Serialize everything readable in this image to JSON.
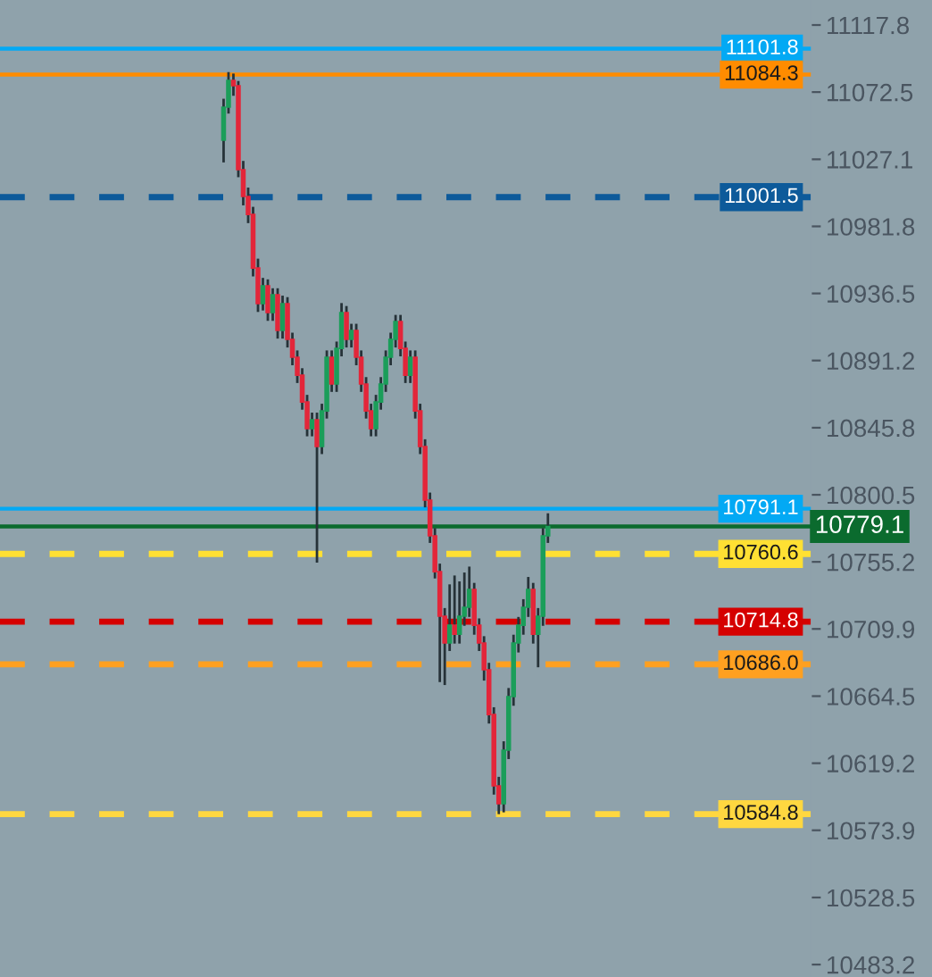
{
  "chart_data": {
    "type": "candlestick",
    "categories": [
      null,
      null,
      null,
      null,
      null,
      null,
      null,
      null,
      null,
      null,
      null,
      null,
      null,
      null,
      null,
      null,
      null,
      null,
      null,
      null,
      null,
      null,
      null,
      null,
      null,
      null,
      null,
      null,
      null,
      null,
      null,
      null,
      null,
      null,
      null,
      null,
      null,
      null,
      null,
      null,
      null,
      null,
      null,
      null,
      null,
      null,
      null,
      null,
      null,
      null,
      null,
      null,
      null,
      null,
      null,
      null,
      null,
      null,
      null,
      null,
      null,
      null,
      null,
      null,
      null,
      null,
      null,
      null,
      null,
      null,
      null,
      null,
      null,
      null,
      null,
      null,
      null,
      null,
      null,
      null,
      null,
      null,
      null,
      null,
      null,
      null,
      null,
      null,
      null,
      null,
      null,
      null,
      null,
      null,
      null,
      null,
      null,
      null,
      null,
      null,
      null,
      null,
      null,
      null,
      null,
      null,
      null,
      null,
      null,
      null,
      null,
      null,
      null,
      null,
      null,
      null,
      null,
      null,
      null,
      null,
      null,
      null,
      null,
      null,
      null,
      null,
      null,
      null,
      null,
      null,
      null,
      null,
      null,
      null,
      null,
      null,
      null,
      null,
      null,
      null,
      null,
      null,
      null,
      null,
      null,
      null,
      null,
      null,
      null,
      null,
      null,
      null,
      null,
      null,
      null,
      null,
      null,
      null,
      null,
      null,
      null,
      null,
      null,
      null,
      null
    ],
    "ohlc": [
      null,
      null,
      null,
      null,
      null,
      null,
      null,
      null,
      null,
      null,
      null,
      null,
      null,
      null,
      null,
      null,
      null,
      null,
      null,
      null,
      null,
      null,
      null,
      null,
      null,
      null,
      null,
      null,
      null,
      null,
      null,
      null,
      null,
      null,
      null,
      null,
      null,
      null,
      null,
      null,
      null,
      null,
      null,
      null,
      null,
      [
        11040.0,
        11068.0,
        11025.0,
        11062.3
      ],
      [
        11062.3,
        11086.0,
        11058.0,
        11080.4
      ],
      [
        11080.4,
        11085.0,
        11070.0,
        11076.8
      ],
      [
        11076.8,
        11080.0,
        11015.0,
        11020.1
      ],
      [
        11020.1,
        11026.0,
        10996.0,
        11002.0
      ],
      [
        11002.0,
        11008.0,
        10984.0,
        10989.9
      ],
      [
        10989.9,
        10995.0,
        10948.0,
        10953.7
      ],
      [
        10953.7,
        10960.0,
        10924.0,
        10929.6
      ],
      [
        10929.6,
        10947.0,
        10925.0,
        10941.7
      ],
      [
        10941.7,
        10946.0,
        10918.0,
        10923.6
      ],
      [
        10923.6,
        10940.0,
        10918.0,
        10935.6
      ],
      [
        10935.6,
        10940.0,
        10906.0,
        10911.5
      ],
      [
        10911.5,
        10935.0,
        10906.0,
        10929.6
      ],
      [
        10929.6,
        10934.0,
        10900.0,
        10905.5
      ],
      [
        10905.5,
        10910.0,
        10888.0,
        10893.4
      ],
      [
        10893.4,
        10898.0,
        10876.0,
        10881.3
      ],
      [
        10881.3,
        10886.0,
        10858.0,
        10863.2
      ],
      [
        10863.2,
        10868.0,
        10840.0,
        10845.2
      ],
      [
        10845.2,
        10856.0,
        10840.0,
        10851.2
      ],
      [
        10851.2,
        10856.0,
        10754.7,
        10833.1
      ],
      [
        10833.1,
        10862.0,
        10828.0,
        10857.2
      ],
      [
        10857.2,
        10898.0,
        10852.0,
        10893.4
      ],
      [
        10893.4,
        10898.0,
        10870.0,
        10875.3
      ],
      [
        10875.3,
        10904.0,
        10870.0,
        10899.4
      ],
      [
        10899.4,
        10930.0,
        10894.0,
        10923.6
      ],
      [
        10923.6,
        10928.0,
        10900.0,
        10905.5
      ],
      [
        10905.5,
        10916.0,
        10900.0,
        10911.5
      ],
      [
        10911.5,
        10916.0,
        10888.0,
        10893.4
      ],
      [
        10893.4,
        10898.0,
        10870.0,
        10875.3
      ],
      [
        10875.3,
        10880.0,
        10852.0,
        10857.2
      ],
      [
        10857.2,
        10862.0,
        10840.0,
        10845.2
      ],
      [
        10845.2,
        10868.0,
        10840.0,
        10863.2
      ],
      [
        10863.2,
        10880.0,
        10858.0,
        10875.3
      ],
      [
        10875.3,
        10898.0,
        10870.0,
        10893.4
      ],
      [
        10893.4,
        10910.0,
        10888.0,
        10905.5
      ],
      [
        10905.5,
        10922.0,
        10900.0,
        10917.5
      ],
      [
        10917.5,
        10922.0,
        10894.0,
        10899.4
      ],
      [
        10899.4,
        10904.0,
        10876.0,
        10881.3
      ],
      [
        10881.3,
        10898.0,
        10876.0,
        10893.4
      ],
      [
        10893.4,
        10898.0,
        10852.0,
        10857.2
      ],
      [
        10857.2,
        10862.0,
        10828.0,
        10833.1
      ],
      [
        10833.1,
        10838.0,
        10792.0,
        10796.9
      ],
      [
        10796.9,
        10802.0,
        10768.0,
        10772.8
      ],
      [
        10772.8,
        10778.0,
        10744.0,
        10748.6
      ],
      [
        10748.6,
        10754.0,
        10674.0,
        10718.5
      ],
      [
        10718.5,
        10724.0,
        10672.0,
        10700.4
      ],
      [
        10700.4,
        10740.0,
        10695.0,
        10712.4
      ],
      [
        10712.4,
        10746.0,
        10700.0,
        10706.4
      ],
      [
        10706.4,
        10742.0,
        10700.0,
        10718.5
      ],
      [
        10718.5,
        10748.0,
        10712.0,
        10724.5
      ],
      [
        10724.5,
        10752.0,
        10718.0,
        10736.6
      ],
      [
        10736.6,
        10741.0,
        10706.0,
        10712.4
      ],
      [
        10712.4,
        10717.0,
        10695.0,
        10700.4
      ],
      [
        10700.4,
        10705.0,
        10675.0,
        10682.3
      ],
      [
        10682.3,
        10687.0,
        10646.0,
        10652.1
      ],
      [
        10652.1,
        10657.0,
        10598.0,
        10603.9
      ],
      [
        10603.9,
        10610.0,
        10584.8,
        10591.8
      ],
      [
        10591.8,
        10634.0,
        10586.0,
        10628.0
      ],
      [
        10628.0,
        10670.0,
        10622.0,
        10664.2
      ],
      [
        10664.2,
        10706.0,
        10658.0,
        10700.4
      ],
      [
        10700.4,
        10718.0,
        10694.0,
        10712.4
      ],
      [
        10712.4,
        10730.0,
        10706.0,
        10724.5
      ],
      [
        10724.5,
        10745.0,
        10718.0,
        10736.6
      ],
      [
        10736.6,
        10741.0,
        10700.0,
        10706.4
      ],
      [
        10706.4,
        10724.0,
        10684.0,
        10718.5
      ],
      [
        10718.5,
        10778.0,
        10712.0,
        10772.8
      ],
      [
        10772.8,
        10788.0,
        10768.0,
        10779.1
      ],
      null,
      null,
      null,
      null,
      null,
      null,
      null,
      null,
      null,
      null,
      null,
      null,
      null,
      null,
      null,
      null,
      null,
      null,
      null,
      null,
      null,
      null,
      null,
      null,
      null,
      null,
      null,
      null,
      null,
      null,
      null,
      null,
      null,
      null,
      null,
      null,
      null,
      null,
      null,
      null,
      null,
      null,
      null,
      null,
      null,
      null,
      null,
      null,
      null,
      null,
      null,
      null,
      null
    ],
    "ylim": [
      10474.8,
      11134.7
    ],
    "yticks": [
      11117.8,
      11072.5,
      11027.1,
      10981.8,
      10936.5,
      10891.2,
      10845.8,
      10800.5,
      10755.2,
      10709.9,
      10664.5,
      10619.2,
      10573.9,
      10528.5,
      10483.2
    ],
    "tick_labels": "y",
    "grid": false,
    "legend": false,
    "ref_lines": [
      {
        "axis": "y",
        "value": 11101.8,
        "label": "11101.8",
        "color": "#03a9f4",
        "line_style": "solid"
      },
      {
        "axis": "y",
        "value": 11084.3,
        "label": "11084.3",
        "color": "#ff8c00",
        "line_style": "solid"
      },
      {
        "axis": "y",
        "value": 11001.5,
        "label": "11001.5",
        "color": "#0d5a9a",
        "line_style": "dashed"
      },
      {
        "axis": "y",
        "value": 10791.1,
        "label": "10791.1",
        "color": "#03a9f4",
        "line_style": "solid"
      },
      {
        "axis": "y",
        "value": 10779.1,
        "label": "10779.1",
        "color": "#0b6b2e",
        "line_style": "solid"
      },
      {
        "axis": "y",
        "value": 10760.6,
        "label": "10760.6",
        "color": "#ffe033",
        "line_style": "dashed"
      },
      {
        "axis": "y",
        "value": 10714.8,
        "label": "10714.8",
        "color": "#d50000",
        "line_style": "dashed"
      },
      {
        "axis": "y",
        "value": 10686.0,
        "label": "10686.0",
        "color": "#ffa020",
        "line_style": "dashed"
      },
      {
        "axis": "y",
        "value": 10584.8,
        "label": "10584.8",
        "color": "#ffd740",
        "line_style": "dashed"
      }
    ]
  }
}
